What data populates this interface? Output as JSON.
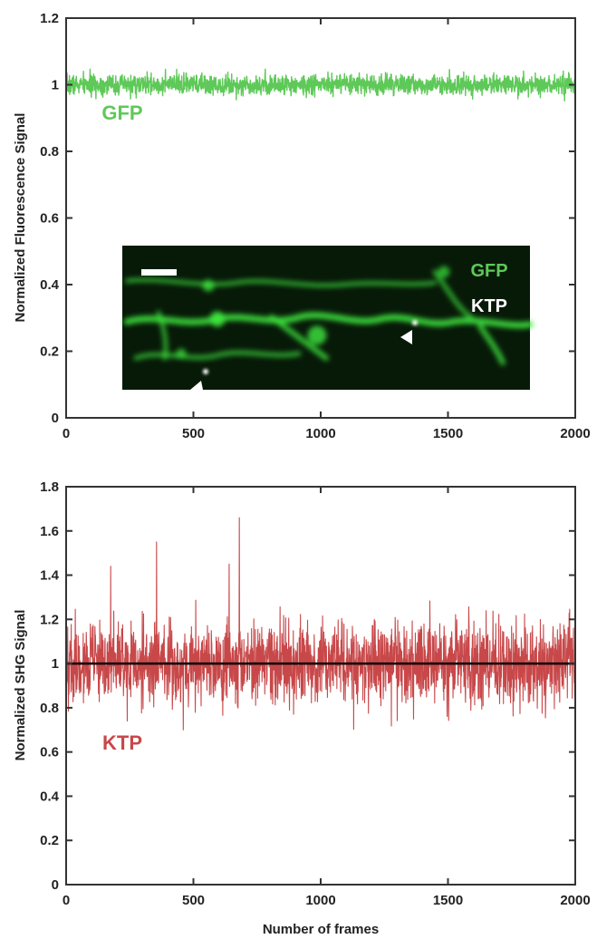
{
  "chart_data": [
    {
      "type": "line",
      "ylabel": "Normalized Fluorescence Signal",
      "xlabel": "",
      "xlim": [
        0,
        2000
      ],
      "ylim": [
        0,
        1.2
      ],
      "xticks": [
        0,
        500,
        1000,
        1500,
        2000
      ],
      "xtick_labels": [
        "0",
        "500",
        "1000",
        "1500",
        "2000"
      ],
      "yticks": [
        0,
        0.2,
        0.4,
        0.6,
        0.8,
        1,
        1.2
      ],
      "ytick_labels": [
        "0",
        "0.2",
        "0.4",
        "0.6",
        "0.8",
        "1",
        "1.2"
      ],
      "series": [
        {
          "name": "GFP",
          "color": "#5ec958",
          "mean": 1.0,
          "noise_amplitude": 0.015,
          "n_points": 2000
        }
      ],
      "annotations": [
        {
          "text": "GFP",
          "color": "#5ec958"
        }
      ],
      "inset_image": {
        "description_labels": [
          {
            "text": "GFP",
            "color": "#5ec958"
          },
          {
            "text": "KTP",
            "color": "#ffffff"
          }
        ],
        "background_color": "#071a08",
        "fluorescence_color": "#3ee83e",
        "markers": [
          "arrowhead",
          "arrowhead"
        ],
        "scale_bar": true
      },
      "grid": false
    },
    {
      "type": "line",
      "ylabel": "Normalized SHG Signal",
      "xlabel": "Number of frames",
      "xlim": [
        0,
        2000
      ],
      "ylim": [
        0,
        1.8
      ],
      "xticks": [
        0,
        500,
        1000,
        1500,
        2000
      ],
      "xtick_labels": [
        "0",
        "500",
        "1000",
        "1500",
        "2000"
      ],
      "yticks": [
        0,
        0.2,
        0.4,
        0.6,
        0.8,
        1,
        1.2,
        1.4,
        1.6,
        1.8
      ],
      "ytick_labels": [
        "0",
        "0.2",
        "0.4",
        "0.6",
        "0.8",
        "1",
        "1.2",
        "1.4",
        "1.6",
        "1.8"
      ],
      "series": [
        {
          "name": "KTP",
          "color": "#c8484a",
          "mean": 1.0,
          "noise_amplitude": 0.09,
          "n_points": 2000,
          "peaks": [
            {
              "x": 175,
              "y": 1.44
            },
            {
              "x": 355,
              "y": 1.55
            },
            {
              "x": 640,
              "y": 1.45
            },
            {
              "x": 680,
              "y": 1.66
            },
            {
              "x": 460,
              "y": 0.7
            },
            {
              "x": 240,
              "y": 0.74
            }
          ]
        }
      ],
      "reference_line": {
        "y": 1.0,
        "color": "#000000"
      },
      "annotations": [
        {
          "text": "KTP",
          "color": "#c8484a"
        }
      ],
      "grid": false
    }
  ]
}
